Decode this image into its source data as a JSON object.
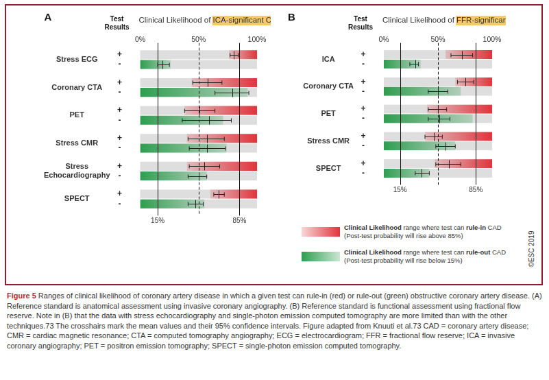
{
  "chart_data": [
    {
      "type": "bar",
      "orientation": "horizontal",
      "panel": "A",
      "title": "Clinical Likelihood of ICA-significant CAD",
      "highlight": "ICA-significant CAD",
      "results_header": "Test Results",
      "categories": [
        "Stress ECG",
        "Coronary CTA",
        "PET",
        "Stress CMR",
        "Stress Echocardiography",
        "SPECT"
      ],
      "series": [
        {
          "name": "+",
          "color": "#e0343c",
          "values": [
            [
              76,
              100
            ],
            [
              44,
              100
            ],
            [
              38,
              100
            ],
            [
              40,
              100
            ],
            [
              40,
              100
            ],
            [
              60,
              100
            ]
          ],
          "mean": [
            80,
            58,
            51,
            57,
            55,
            67
          ],
          "ci": [
            [
              77,
              84
            ],
            [
              45,
              70
            ],
            [
              38,
              64
            ],
            [
              41,
              72
            ],
            [
              42,
              68
            ],
            [
              63,
              72
            ]
          ]
        },
        {
          "name": "-",
          "color": "#2e9e4f",
          "values": [
            [
              0,
              26
            ],
            [
              0,
              92
            ],
            [
              0,
              71
            ],
            [
              0,
              74
            ],
            [
              0,
              57
            ],
            [
              0,
              55
            ]
          ],
          "mean": [
            19,
            79,
            59,
            57,
            50,
            47
          ],
          "ci": [
            [
              15,
              25
            ],
            [
              64,
              93
            ],
            [
              36,
              78
            ],
            [
              42,
              73
            ],
            [
              41,
              57
            ],
            [
              41,
              54
            ]
          ]
        }
      ],
      "xlim": [
        0,
        100
      ],
      "xticks": [
        {
          "value": 0,
          "label": "0%"
        },
        {
          "value": 50,
          "label": "50%"
        },
        {
          "value": 100,
          "label": "100%"
        }
      ],
      "reference_lines": [
        {
          "value": 15,
          "label": "15%",
          "line_style": "solid"
        },
        {
          "value": 50,
          "line_style": "dashed"
        },
        {
          "value": 85,
          "label": "85%",
          "line_style": "solid"
        }
      ],
      "grid": false
    },
    {
      "type": "bar",
      "orientation": "horizontal",
      "panel": "B",
      "title": "Clinical Likelihood of FFR-significant CAD",
      "highlight": "FFR-significant CAD",
      "results_header": "Test Results",
      "categories": [
        "ICA",
        "Coronary CTA",
        "PET",
        "Stress CMR",
        "SPECT"
      ],
      "series": [
        {
          "name": "+",
          "color": "#e0343c",
          "values": [
            [
              57,
              100
            ],
            [
              66,
              100
            ],
            [
              40,
              100
            ],
            [
              38,
              100
            ],
            [
              47,
              100
            ]
          ],
          "mean": [
            72,
            75,
            50,
            46,
            60
          ],
          "ci": [
            [
              62,
              82
            ],
            [
              68,
              83
            ],
            [
              41,
              58
            ],
            [
              38,
              54
            ],
            [
              48,
              71
            ]
          ]
        },
        {
          "name": "-",
          "color": "#2e9e4f",
          "values": [
            [
              0,
              34
            ],
            [
              0,
              71
            ],
            [
              0,
              82
            ],
            [
              0,
              66
            ],
            [
              0,
              42
            ]
          ],
          "mean": [
            29,
            50,
            51,
            57,
            35
          ],
          "ci": [
            [
              24,
              32
            ],
            [
              41,
              59
            ],
            [
              41,
              61
            ],
            [
              48,
              66
            ],
            [
              29,
              42
            ]
          ]
        }
      ],
      "xlim": [
        0,
        100
      ],
      "xticks": [
        {
          "value": 0,
          "label": "0%"
        },
        {
          "value": 50,
          "label": "50%"
        },
        {
          "value": 100,
          "label": "100%"
        }
      ],
      "reference_lines": [
        {
          "value": 15,
          "label": "15%",
          "line_style": "solid"
        },
        {
          "value": 50,
          "line_style": "dashed"
        },
        {
          "value": 85,
          "label": "85%",
          "line_style": "solid"
        }
      ],
      "grid": false
    }
  ],
  "legend_items": [
    {
      "color": "#e0343c",
      "parts": [
        "Clinical Likelihood",
        " range where test can ",
        "rule-in",
        " CAD (Post-test probability will rise above 85%)"
      ]
    },
    {
      "color": "#2e9e4f",
      "parts": [
        "Clinical Likelihood",
        " range where test can ",
        "rule-out",
        " CAD (Post-test probability will rise below 15%)"
      ]
    }
  ],
  "copyright": "©ESC 2019",
  "caption": {
    "label": "Figure 5",
    "text": "Ranges of clinical likelihood of coronary artery disease in which a given test can rule-in (red) or rule-out (green) obstructive coronary artery disease. (A) Reference standard is anatomical assessment using invasive coronary angiography. (B) Reference standard is functional assessment using fractional flow reserve. Note in (B) that the data with stress echocardiography and single-photon emission computed tomography are more limited than with the other techniques.73 The crosshairs mark the mean values and their 95% confidence intervals. Figure adapted from Knuuti et al.73 CAD = coronary artery disease; CMR = cardiac magnetic resonance; CTA = computed tomography angiography; ECG = electrocardiogram; FFR = fractional flow reserve; ICA = invasive coronary angiography; PET = positron emission tomography; SPECT = single-photon emission computed tomography."
  }
}
